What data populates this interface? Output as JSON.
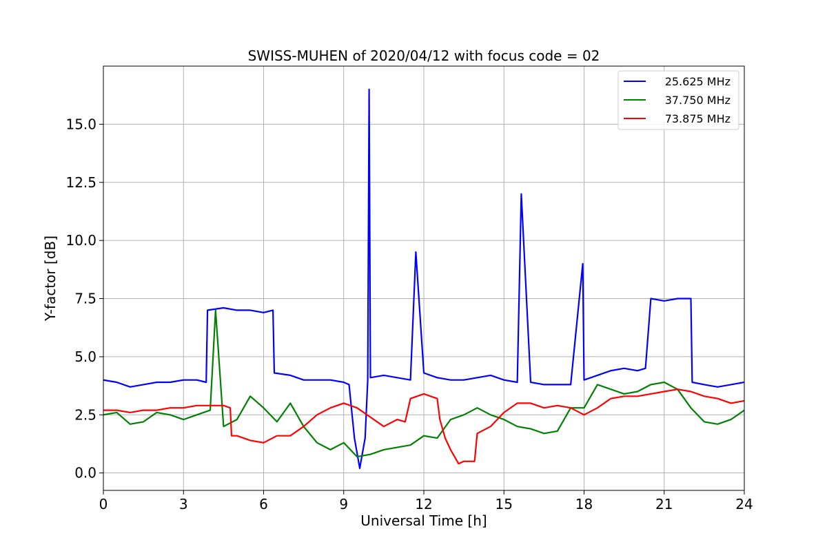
{
  "chart_data": {
    "type": "line",
    "title": "SWISS-MUHEN of 2020/04/12 with focus code = 02",
    "xlabel": "Universal Time [h]",
    "ylabel": "Y-factor [dB]",
    "xlim": [
      0,
      24
    ],
    "ylim": [
      -0.75,
      17.5
    ],
    "xticks": [
      0,
      3,
      6,
      9,
      12,
      15,
      18,
      21,
      24
    ],
    "xtick_labels": [
      "0",
      "3",
      "6",
      "9",
      "12",
      "15",
      "18",
      "21",
      "24"
    ],
    "yticks": [
      0,
      2.5,
      5,
      7.5,
      10,
      12.5,
      15
    ],
    "ytick_labels": [
      "0.0",
      "2.5",
      "5.0",
      "7.5",
      "10.0",
      "12.5",
      "15.0"
    ],
    "grid": true,
    "legend_position": "top-right",
    "series": [
      {
        "name": "25.625 MHz",
        "color": "#0000ff",
        "x": [
          0,
          0.5,
          1,
          1.5,
          2,
          2.5,
          3,
          3.5,
          3.85,
          3.9,
          4.5,
          5,
          5.5,
          6,
          6.35,
          6.4,
          7,
          7.5,
          8,
          8.5,
          9,
          9.2,
          9.4,
          9.6,
          9.8,
          9.9,
          9.95,
          10.0,
          10.5,
          11,
          11.5,
          11.7,
          12,
          12.5,
          13,
          13.5,
          14,
          14.5,
          15,
          15.5,
          15.65,
          16,
          16.5,
          17,
          17.5,
          17.95,
          18,
          18.5,
          19,
          19.5,
          20,
          20.3,
          20.5,
          21,
          21.5,
          22,
          22.05,
          22.5,
          23,
          23.5,
          24
        ],
        "values": [
          4.0,
          3.9,
          3.7,
          3.8,
          3.9,
          3.9,
          4.0,
          4.0,
          3.9,
          7.0,
          7.1,
          7.0,
          7.0,
          6.9,
          7.0,
          4.3,
          4.2,
          4.0,
          4.0,
          4.0,
          3.9,
          3.8,
          1.5,
          0.2,
          1.5,
          4.0,
          16.5,
          4.1,
          4.2,
          4.1,
          4.0,
          9.5,
          4.3,
          4.1,
          4.0,
          4.0,
          4.1,
          4.2,
          4.0,
          3.9,
          12.0,
          3.9,
          3.8,
          3.8,
          3.8,
          9.0,
          4.0,
          4.2,
          4.4,
          4.5,
          4.4,
          4.5,
          7.5,
          7.4,
          7.5,
          7.5,
          3.9,
          3.8,
          3.7,
          3.8,
          3.9
        ]
      },
      {
        "name": "37.750 MHz",
        "color": "#008000",
        "x": [
          0,
          0.5,
          1,
          1.5,
          2,
          2.5,
          3,
          3.5,
          4,
          4.2,
          4.5,
          5,
          5.5,
          6,
          6.5,
          7,
          7.5,
          8,
          8.5,
          9,
          9.5,
          10,
          10.5,
          11,
          11.5,
          12,
          12.5,
          13,
          13.5,
          14,
          14.5,
          15,
          15.5,
          16,
          16.5,
          17,
          17.5,
          18,
          18.5,
          19,
          19.5,
          20,
          20.5,
          21,
          21.5,
          22,
          22.5,
          23,
          23.5,
          24
        ],
        "values": [
          2.5,
          2.6,
          2.1,
          2.2,
          2.6,
          2.5,
          2.3,
          2.5,
          2.7,
          7.0,
          2.0,
          2.3,
          3.3,
          2.8,
          2.2,
          3.0,
          2.0,
          1.3,
          1.0,
          1.3,
          0.7,
          0.8,
          1.0,
          1.1,
          1.2,
          1.6,
          1.5,
          2.3,
          2.5,
          2.8,
          2.5,
          2.3,
          2.0,
          1.9,
          1.7,
          1.8,
          2.8,
          2.8,
          3.8,
          3.6,
          3.4,
          3.5,
          3.8,
          3.9,
          3.6,
          2.8,
          2.2,
          2.1,
          2.3,
          2.7
        ]
      },
      {
        "name": "73.875 MHz",
        "color": "#ff0000",
        "x": [
          0,
          0.5,
          1,
          1.5,
          2,
          2.5,
          3,
          3.5,
          4,
          4.5,
          4.75,
          4.8,
          5,
          5.5,
          6,
          6.5,
          7,
          7.5,
          8,
          8.5,
          9,
          9.5,
          10,
          10.5,
          11,
          11.3,
          11.5,
          12,
          12.5,
          12.6,
          12.8,
          13,
          13.3,
          13.5,
          13.9,
          14,
          14.5,
          15,
          15.5,
          16,
          16.5,
          17,
          17.5,
          18,
          18.5,
          19,
          19.5,
          20,
          20.5,
          21,
          21.5,
          22,
          22.5,
          23,
          23.5,
          24
        ],
        "values": [
          2.7,
          2.7,
          2.6,
          2.7,
          2.7,
          2.8,
          2.8,
          2.9,
          2.9,
          2.9,
          2.8,
          1.6,
          1.6,
          1.4,
          1.3,
          1.6,
          1.6,
          2.0,
          2.5,
          2.8,
          3.0,
          2.8,
          2.4,
          2.0,
          2.3,
          2.2,
          3.2,
          3.4,
          3.2,
          2.3,
          1.5,
          1.0,
          0.4,
          0.5,
          0.5,
          1.7,
          2.0,
          2.6,
          3.0,
          3.0,
          2.8,
          2.9,
          2.8,
          2.5,
          2.8,
          3.2,
          3.3,
          3.3,
          3.4,
          3.5,
          3.6,
          3.5,
          3.3,
          3.2,
          3.0,
          3.1
        ]
      }
    ]
  }
}
